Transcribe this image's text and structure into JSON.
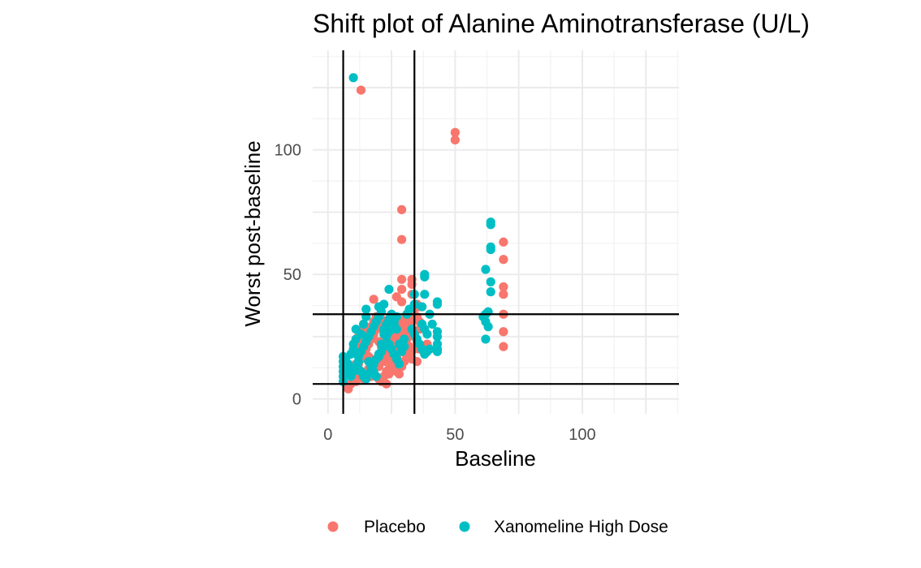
{
  "chart_data": {
    "type": "scatter",
    "title": "Shift plot of Alanine Aminotransferase (U/L)",
    "xlabel": "Baseline",
    "ylabel": "Worst post-baseline",
    "xlim": [
      -6,
      138
    ],
    "ylim": [
      -6,
      140
    ],
    "x_ticks": [
      0,
      50,
      100
    ],
    "y_ticks": [
      0,
      50,
      100
    ],
    "grid": true,
    "legend_position": "bottom",
    "reference_lines": {
      "x": [
        6,
        34
      ],
      "y": [
        6,
        34
      ]
    },
    "series": [
      {
        "name": "Placebo",
        "color": "#F8766D",
        "points": [
          [
            13,
            124
          ],
          [
            50,
            107
          ],
          [
            50,
            104
          ],
          [
            29,
            76
          ],
          [
            29,
            64
          ],
          [
            69,
            63
          ],
          [
            69,
            56
          ],
          [
            33,
            48
          ],
          [
            29,
            48
          ],
          [
            33,
            46
          ],
          [
            29,
            44
          ],
          [
            69,
            45
          ],
          [
            69,
            42
          ],
          [
            27,
            41
          ],
          [
            18,
            40
          ],
          [
            33,
            42
          ],
          [
            29,
            39
          ],
          [
            20,
            37
          ],
          [
            36,
            37
          ],
          [
            69,
            34
          ],
          [
            8,
            5
          ],
          [
            8,
            4
          ],
          [
            9,
            6
          ],
          [
            10,
            8
          ],
          [
            11,
            7
          ],
          [
            12,
            9
          ],
          [
            13,
            10
          ],
          [
            14,
            8
          ],
          [
            15,
            11
          ],
          [
            16,
            12
          ],
          [
            17,
            9
          ],
          [
            18,
            14
          ],
          [
            19,
            16
          ],
          [
            20,
            13
          ],
          [
            21,
            17
          ],
          [
            22,
            15
          ],
          [
            23,
            11
          ],
          [
            24,
            10
          ],
          [
            25,
            13
          ],
          [
            26,
            18
          ],
          [
            27,
            20
          ],
          [
            28,
            22
          ],
          [
            29,
            24
          ],
          [
            30,
            26
          ],
          [
            31,
            28
          ],
          [
            32,
            30
          ],
          [
            33,
            32
          ],
          [
            34,
            25
          ],
          [
            35,
            23
          ],
          [
            12,
            14
          ],
          [
            13,
            16
          ],
          [
            14,
            18
          ],
          [
            15,
            20
          ],
          [
            16,
            22
          ],
          [
            17,
            24
          ],
          [
            18,
            26
          ],
          [
            19,
            28
          ],
          [
            20,
            30
          ],
          [
            21,
            32
          ],
          [
            22,
            27
          ],
          [
            23,
            25
          ],
          [
            24,
            23
          ],
          [
            25,
            21
          ],
          [
            26,
            19
          ],
          [
            27,
            17
          ],
          [
            28,
            15
          ],
          [
            29,
            20
          ],
          [
            30,
            22
          ],
          [
            31,
            24
          ],
          [
            32,
            18
          ],
          [
            33,
            16
          ],
          [
            34,
            20
          ],
          [
            35,
            15
          ],
          [
            36,
            28
          ],
          [
            36,
            31
          ],
          [
            10,
            12
          ],
          [
            11,
            14
          ],
          [
            12,
            19
          ],
          [
            13,
            22
          ],
          [
            14,
            25
          ],
          [
            15,
            28
          ],
          [
            16,
            17
          ],
          [
            17,
            15
          ],
          [
            18,
            10
          ],
          [
            19,
            9
          ],
          [
            20,
            8
          ],
          [
            21,
            7
          ],
          [
            22,
            9
          ],
          [
            23,
            6
          ],
          [
            24,
            12
          ],
          [
            25,
            16
          ],
          [
            26,
            24
          ],
          [
            27,
            26
          ],
          [
            28,
            28
          ],
          [
            29,
            30
          ],
          [
            30,
            32
          ],
          [
            31,
            19
          ],
          [
            32,
            21
          ],
          [
            33,
            27
          ],
          [
            35,
            33
          ],
          [
            36,
            20
          ],
          [
            38,
            18
          ],
          [
            39,
            22
          ],
          [
            69,
            27
          ],
          [
            69,
            21
          ],
          [
            12,
            25
          ],
          [
            13,
            27
          ],
          [
            14,
            30
          ],
          [
            15,
            24
          ],
          [
            16,
            26
          ],
          [
            17,
            29
          ],
          [
            18,
            31
          ],
          [
            19,
            33
          ],
          [
            20,
            23
          ],
          [
            21,
            21
          ],
          [
            22,
            19
          ],
          [
            23,
            18
          ],
          [
            24,
            16
          ],
          [
            25,
            14
          ],
          [
            26,
            12
          ],
          [
            27,
            11
          ],
          [
            28,
            10
          ],
          [
            29,
            13
          ],
          [
            30,
            15
          ],
          [
            31,
            17
          ],
          [
            32,
            29
          ],
          [
            33,
            35
          ],
          [
            34,
            36
          ],
          [
            35,
            38
          ]
        ]
      },
      {
        "name": "Xanomeline High Dose",
        "color": "#00BFC4",
        "points": [
          [
            10,
            129
          ],
          [
            64,
            71
          ],
          [
            64,
            70
          ],
          [
            64,
            61
          ],
          [
            64,
            60
          ],
          [
            62,
            52
          ],
          [
            38,
            50
          ],
          [
            38,
            49
          ],
          [
            64,
            47
          ],
          [
            24,
            44
          ],
          [
            64,
            43
          ],
          [
            34,
            42
          ],
          [
            38,
            42
          ],
          [
            43,
            39
          ],
          [
            43,
            38
          ],
          [
            34,
            38
          ],
          [
            37,
            37
          ],
          [
            22,
            38
          ],
          [
            20,
            37
          ],
          [
            15,
            36
          ],
          [
            63,
            35
          ],
          [
            62,
            34
          ],
          [
            61,
            33
          ],
          [
            62,
            31
          ],
          [
            63,
            29
          ],
          [
            62,
            24
          ],
          [
            6,
            7
          ],
          [
            6,
            9
          ],
          [
            6,
            11
          ],
          [
            6,
            13
          ],
          [
            6,
            15
          ],
          [
            6,
            17
          ],
          [
            7,
            16
          ],
          [
            7,
            12
          ],
          [
            8,
            10
          ],
          [
            8,
            14
          ],
          [
            9,
            18
          ],
          [
            10,
            20
          ],
          [
            10,
            22
          ],
          [
            11,
            24
          ],
          [
            11,
            28
          ],
          [
            12,
            12
          ],
          [
            13,
            26
          ],
          [
            14,
            30
          ],
          [
            15,
            33
          ],
          [
            16,
            15
          ],
          [
            17,
            13
          ],
          [
            18,
            11
          ],
          [
            19,
            9
          ],
          [
            20,
            17
          ],
          [
            21,
            19
          ],
          [
            22,
            21
          ],
          [
            23,
            25
          ],
          [
            24,
            27
          ],
          [
            25,
            29
          ],
          [
            26,
            31
          ],
          [
            27,
            33
          ],
          [
            28,
            22
          ],
          [
            29,
            20
          ],
          [
            30,
            24
          ],
          [
            12,
            17
          ],
          [
            13,
            19
          ],
          [
            14,
            21
          ],
          [
            15,
            23
          ],
          [
            16,
            25
          ],
          [
            17,
            27
          ],
          [
            18,
            29
          ],
          [
            19,
            31
          ],
          [
            20,
            33
          ],
          [
            21,
            35
          ],
          [
            22,
            28
          ],
          [
            23,
            26
          ],
          [
            24,
            22
          ],
          [
            25,
            20
          ],
          [
            26,
            18
          ],
          [
            27,
            16
          ],
          [
            28,
            14
          ],
          [
            29,
            19
          ],
          [
            30,
            21
          ],
          [
            33,
            28
          ],
          [
            34,
            26
          ],
          [
            35,
            24
          ],
          [
            36,
            22
          ],
          [
            37,
            20
          ],
          [
            38,
            18
          ],
          [
            39,
            19
          ],
          [
            40,
            20
          ],
          [
            43,
            27
          ],
          [
            43,
            25
          ],
          [
            43,
            22
          ],
          [
            43,
            20
          ],
          [
            43,
            19
          ],
          [
            9,
            9
          ],
          [
            10,
            11
          ],
          [
            11,
            13
          ],
          [
            12,
            15
          ],
          [
            13,
            11
          ],
          [
            14,
            9
          ],
          [
            15,
            8
          ],
          [
            16,
            10
          ],
          [
            17,
            12
          ],
          [
            18,
            14
          ],
          [
            19,
            16
          ],
          [
            20,
            18
          ],
          [
            21,
            22
          ],
          [
            22,
            26
          ],
          [
            23,
            30
          ],
          [
            24,
            32
          ],
          [
            25,
            34
          ],
          [
            26,
            30
          ],
          [
            27,
            28
          ],
          [
            31,
            34
          ],
          [
            32,
            36
          ],
          [
            37,
            30
          ],
          [
            38,
            28
          ],
          [
            39,
            26
          ],
          [
            40,
            34
          ],
          [
            41,
            30
          ]
        ]
      }
    ]
  },
  "legend": {
    "items": [
      {
        "label": "Placebo",
        "color": "#F8766D"
      },
      {
        "label": "Xanomeline High Dose",
        "color": "#00BFC4"
      }
    ]
  }
}
